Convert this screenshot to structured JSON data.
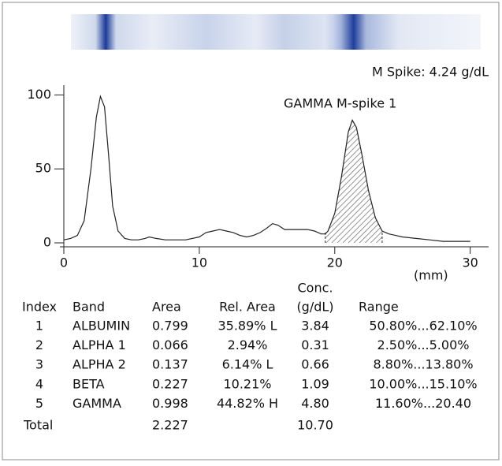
{
  "chart_data": {
    "type": "line",
    "title": "M Spike: 4.24 g/dL",
    "x_label": "(mm)",
    "x": [
      0,
      0.5,
      1,
      1.5,
      2,
      2.4,
      2.7,
      3,
      3.3,
      3.6,
      4,
      4.5,
      5,
      5.5,
      6,
      6.3,
      6.8,
      7.5,
      8,
      9,
      10,
      10.5,
      11,
      11.5,
      12,
      12.5,
      13,
      13.5,
      14,
      14.5,
      15,
      15.4,
      15.8,
      16.3,
      17,
      18,
      18.5,
      19,
      19.3,
      19.5,
      20,
      20.5,
      21,
      21.3,
      21.6,
      22,
      22.5,
      23,
      23.5,
      24,
      24.5,
      25,
      26,
      27,
      28,
      29,
      30
    ],
    "values": [
      2,
      3,
      5,
      15,
      50,
      85,
      99,
      92,
      60,
      25,
      8,
      3,
      2,
      2,
      3,
      4,
      3,
      2,
      2,
      2,
      4,
      7,
      8,
      9,
      8,
      7,
      5,
      4,
      5,
      7,
      10,
      13,
      12,
      9,
      9,
      9,
      8,
      6,
      6,
      8,
      20,
      45,
      75,
      83,
      78,
      60,
      35,
      17,
      8,
      6,
      5,
      4,
      3,
      2,
      1,
      1,
      1
    ],
    "color": "#222222",
    "xlim": [
      0,
      31.3
    ],
    "xticks": [
      0,
      10,
      20,
      30
    ],
    "ylim": [
      0,
      105
    ],
    "yticks": [
      0,
      50,
      100
    ],
    "highlight": {
      "label": "GAMMA M-spike 1",
      "xrange": [
        19.3,
        23.5
      ]
    }
  },
  "table": {
    "header": [
      "Index",
      "Band",
      "Area",
      "Rel. Area",
      [
        "Conc.",
        "(g/dL)"
      ],
      "Range"
    ],
    "rows": [
      [
        "1",
        "ALBUMIN",
        "0.799",
        "35.89% L",
        "3.84",
        "50.80%...62.10%"
      ],
      [
        "2",
        "ALPHA 1",
        "0.066",
        "2.94%",
        "0.31",
        "2.50%...5.00%"
      ],
      [
        "3",
        "ALPHA 2",
        "0.137",
        "6.14% L",
        "0.66",
        "8.80%...13.80%"
      ],
      [
        "4",
        "BETA",
        "0.227",
        "10.21%",
        "1.09",
        "10.00%...15.10%"
      ],
      [
        "5",
        "GAMMA",
        "0.998",
        "44.82% H",
        "4.80",
        "11.60%...20.40"
      ]
    ],
    "total": {
      "label": "Total",
      "area": "2.227",
      "conc": "10.70"
    }
  }
}
